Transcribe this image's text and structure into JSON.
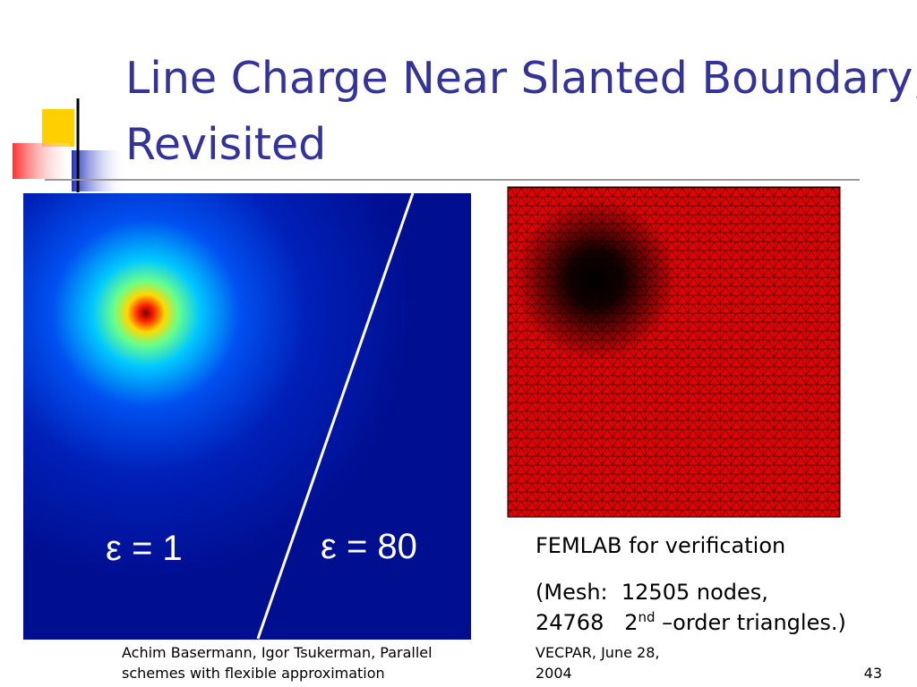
{
  "slide": {
    "title": [
      "Line Charge Near Slanted Boundary,",
      "Revisited"
    ],
    "figure_labels": [
      "ε = 1",
      "ε = 80"
    ],
    "caption": "FEMLAB for verification",
    "mesh_note": {
      "line1": "(Mesh:  12505 nodes,",
      "line2_main": "24768   2",
      "line2_sup": "nd",
      "line2_rest": " –order triangles.)"
    },
    "footer": {
      "authors": [
        "Achim Basermann, Igor Tsukerman, Parallel",
        "schemes with flexible approximation"
      ],
      "venue": [
        "VECPAR, June 28,",
        "2004"
      ],
      "page": "43"
    }
  }
}
